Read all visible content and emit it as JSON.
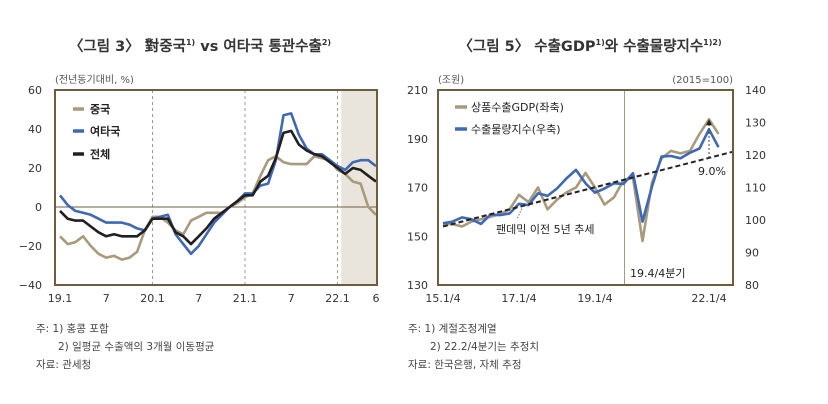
{
  "colors": {
    "china": "#a89a7c",
    "others": "#3f68b5",
    "total": "#231f20",
    "frame": "#6e5c3f",
    "shade": "#e9e5dd",
    "trend": "#222222"
  },
  "chart_data": [
    {
      "type": "line",
      "title": "〈그림 3〉 對중국",
      "title_sup1": "1)",
      "title_mid": " vs 여타국 통관수출",
      "title_sup2": "2)",
      "unit_label": "(전년동기대비, %)",
      "ylim": [
        -40,
        60
      ],
      "yticks": [
        "60",
        "40",
        "20",
        "0",
        "−20",
        "−40"
      ],
      "ytick_values": [
        60,
        40,
        20,
        0,
        -20,
        -40
      ],
      "xticks": [
        {
          "label": "19.1",
          "index": 0
        },
        {
          "label": "7",
          "index": 6
        },
        {
          "label": "20.1",
          "index": 12
        },
        {
          "label": "7",
          "index": 18
        },
        {
          "label": "21.1",
          "index": 24
        },
        {
          "label": "7",
          "index": 30
        },
        {
          "label": "22.1",
          "index": 36
        },
        {
          "label": "6",
          "index": 41
        }
      ],
      "x_period": "19.1–22.6 monthly",
      "dashed_vlines_at_index": [
        12,
        24,
        36
      ],
      "shaded_from_index": 37,
      "grid": false,
      "legend_position": "top-left",
      "series": [
        {
          "name": "중국",
          "color_key": "china",
          "values": [
            -15,
            -19,
            -18,
            -15,
            -20,
            -24,
            -26,
            -25,
            -27,
            -26,
            -23,
            -12,
            -5,
            -5,
            -8,
            -12,
            -14,
            -7,
            -5,
            -3,
            -3,
            -3,
            0,
            2,
            5,
            7,
            16,
            24,
            26,
            23,
            22,
            22,
            22,
            26,
            25,
            24,
            19,
            17,
            13,
            12,
            0,
            -4
          ]
        },
        {
          "name": "여타국",
          "color_key": "others",
          "values": [
            6,
            1,
            -2,
            -3,
            -4,
            -6,
            -8,
            -8,
            -8,
            -9,
            -11,
            -12,
            -6,
            -5,
            -4,
            -14,
            -19,
            -24,
            -20,
            -14,
            -8,
            -4,
            0,
            3,
            7,
            7,
            11,
            12,
            24,
            47,
            48,
            37,
            30,
            27,
            27,
            24,
            21,
            19,
            23,
            24,
            24,
            21
          ]
        },
        {
          "name": "전체",
          "color_key": "total",
          "values": [
            -2,
            -6,
            -7,
            -7,
            -10,
            -13,
            -15,
            -14,
            -15,
            -15,
            -15,
            -12,
            -6,
            -6,
            -6,
            -13,
            -15,
            -19,
            -15,
            -11,
            -6,
            -3,
            0,
            3,
            6,
            6,
            13,
            16,
            25,
            38,
            39,
            32,
            29,
            27,
            26,
            23,
            20,
            17,
            20,
            19,
            16,
            13
          ]
        }
      ]
    },
    {
      "type": "line",
      "title": "〈그림 5〉 수출GDP",
      "title_sup1": "1)",
      "title_mid": "와 수출물량지수",
      "title_sup2": "1)2)",
      "unit_left": "(조원)",
      "unit_right": "(2015=100)",
      "ylim_left": [
        130,
        210
      ],
      "ylim_right": [
        80,
        140
      ],
      "yticks_left": [
        "210",
        "190",
        "170",
        "150",
        "130"
      ],
      "ytick_values_left": [
        210,
        190,
        170,
        150,
        130
      ],
      "yticks_right": [
        "140",
        "130",
        "120",
        "110",
        "100",
        "90",
        "80"
      ],
      "ytick_values_right": [
        140,
        130,
        120,
        110,
        100,
        90,
        80
      ],
      "xticks": [
        {
          "label": "15.1/4",
          "index": 0
        },
        {
          "label": "17.1/4",
          "index": 8
        },
        {
          "label": "19.1/4",
          "index": 16
        },
        {
          "label": "22.1/4",
          "index": 28
        }
      ],
      "x_period": "15.1/4–22.2/4 quarterly",
      "vline_index": 19,
      "vline_label": "19.4/4분기",
      "trend_label": "팬데믹 이전 5년 추세",
      "trend": {
        "start_value": 154,
        "end_value": 184.7,
        "start_index": 0,
        "end_index": 30.6
      },
      "gap_label": "9.0%",
      "gap_index": 28,
      "grid": false,
      "legend_position": "top-left",
      "series": [
        {
          "name": "상품수출GDP(좌축)",
          "color_key": "china",
          "axis": "left",
          "values": [
            155,
            155,
            154,
            156,
            157,
            158,
            159,
            161,
            167,
            164,
            170,
            161,
            165,
            168,
            170,
            176,
            170,
            163,
            166,
            173,
            174,
            148,
            172,
            182,
            185,
            184,
            185,
            192,
            198,
            192
          ]
        },
        {
          "name": "수출물량지수(우축)",
          "color_key": "others",
          "axis": "right",
          "values": [
            99,
            99.5,
            100.8,
            100.2,
            98.8,
            101.7,
            101.5,
            102,
            105,
            104.6,
            108.2,
            107.4,
            109.7,
            112.8,
            115.4,
            111.3,
            108.4,
            109.7,
            111.3,
            111.1,
            114.4,
            99.5,
            110.3,
            119.5,
            119.7,
            119,
            120.7,
            122,
            127.9,
            122.4
          ]
        }
      ]
    }
  ],
  "footnotes": {
    "left": [
      "주: 1) 홍콩 포함",
      "2) 일평균 수출액의 3개월 이동평균",
      "자료: 관세청"
    ],
    "right": [
      "주: 1) 계절조정계열",
      "2) 22.2/4분기는 추정치",
      "자료: 한국은행, 자체 추정"
    ]
  }
}
